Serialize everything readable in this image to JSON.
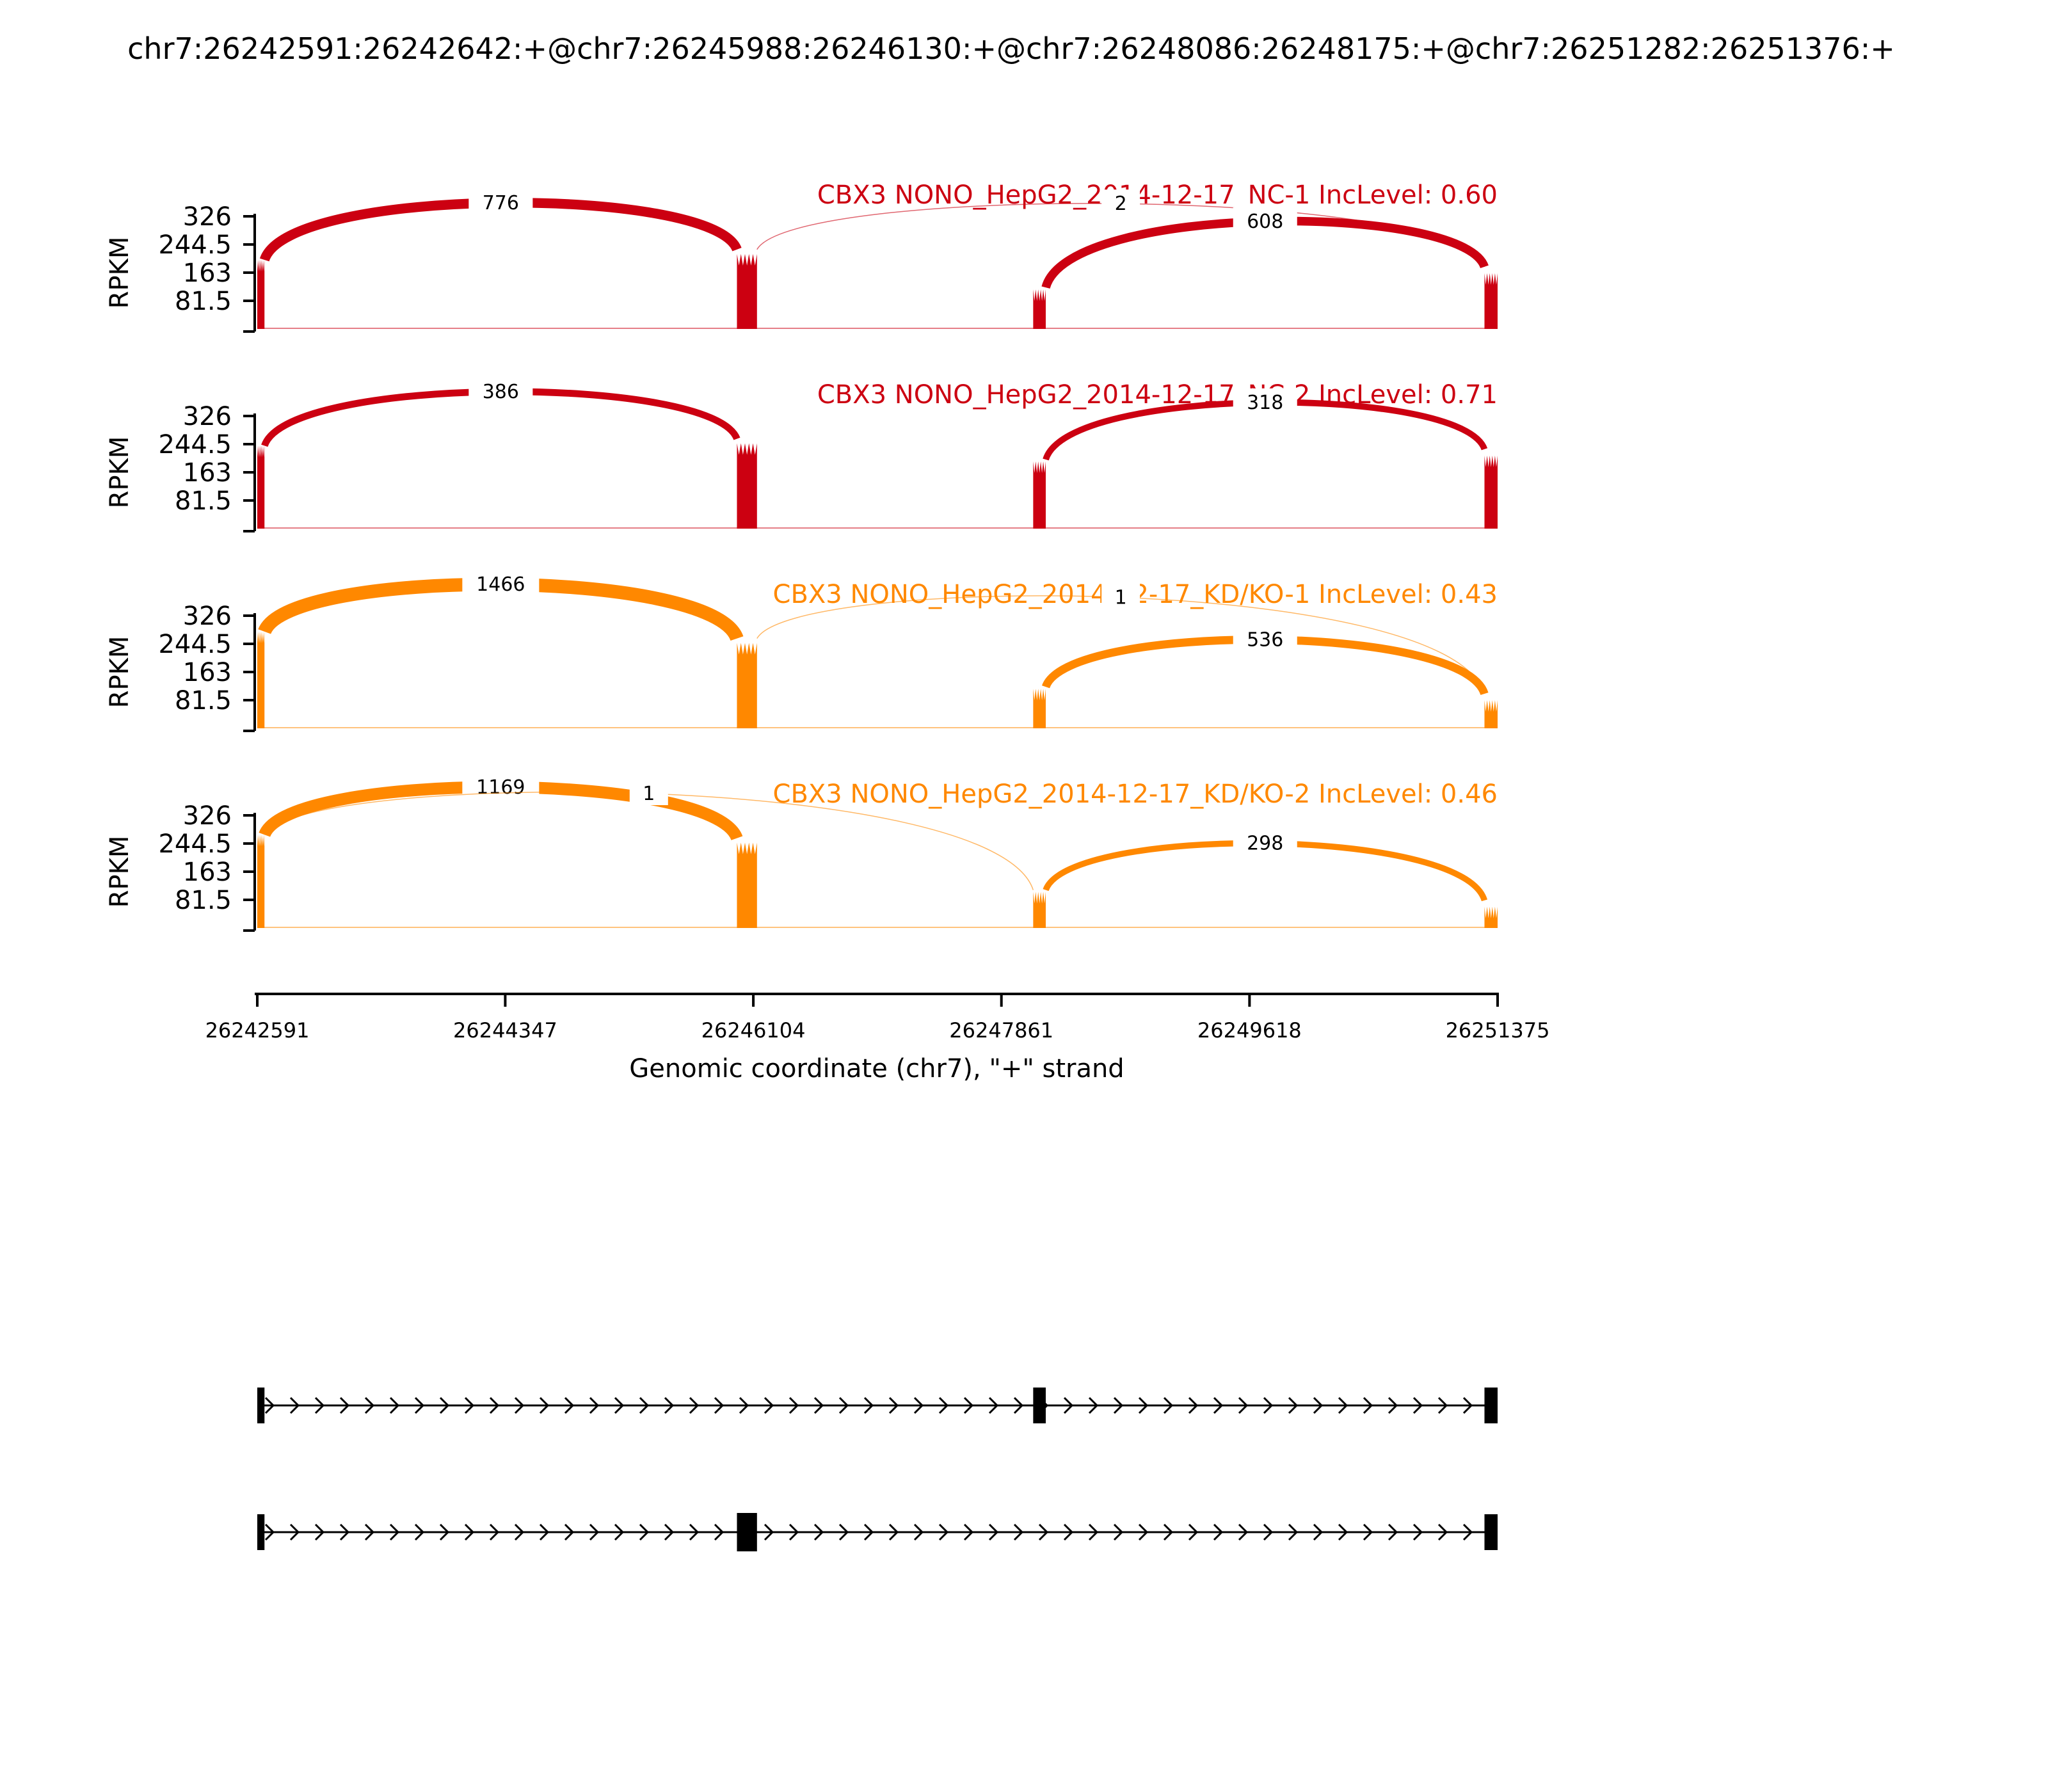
{
  "chart_data": {
    "type": "sashimi",
    "title": "chr7:26242591:26242642:+@chr7:26245988:26246130:+@chr7:26248086:26248175:+@chr7:26251282:26251376:+",
    "xlabel": "Genomic coordinate (chr7), \"+\" strand",
    "ylabel": "RPKM",
    "xlim": [
      26242591,
      26251375
    ],
    "ylim": [
      0,
      326
    ],
    "yticks": [
      "81.5",
      "163",
      "244.5",
      "326"
    ],
    "xticks": [
      "26242591",
      "26244347",
      "26246104",
      "26247861",
      "26249618",
      "26251375"
    ],
    "exons": [
      {
        "start": 26242591,
        "end": 26242642
      },
      {
        "start": 26245988,
        "end": 26246130
      },
      {
        "start": 26248086,
        "end": 26248175
      },
      {
        "start": 26251282,
        "end": 26251375
      }
    ],
    "tracks": [
      {
        "label": "CBX3 NONO_HepG2_2014-12-17_NC-1 IncLevel: 0.60",
        "color": "#cc0011",
        "coverage": [
          200,
          230,
          120,
          180
        ],
        "junctions": [
          {
            "from": 26242642,
            "to": 26245988,
            "count": "776",
            "side": "above"
          },
          {
            "from": 26246130,
            "to": 26251282,
            "count": "2",
            "side": "above"
          },
          {
            "from": 26248175,
            "to": 26251282,
            "count": "608",
            "side": "above"
          }
        ]
      },
      {
        "label": "CBX3 NONO_HepG2_2014-12-17_NC-2 IncLevel: 0.71",
        "color": "#cc0011",
        "coverage": [
          240,
          260,
          200,
          230
        ],
        "junctions": [
          {
            "from": 26242642,
            "to": 26245988,
            "count": "386",
            "side": "above"
          },
          {
            "from": 26248175,
            "to": 26251282,
            "count": "318",
            "side": "above"
          }
        ]
      },
      {
        "label": "CBX3 NONO_HepG2_2014-12-17_KD/KO-1 IncLevel: 0.43",
        "color": "#ff8800",
        "coverage": [
          280,
          260,
          120,
          100
        ],
        "junctions": [
          {
            "from": 26242642,
            "to": 26245988,
            "count": "1466",
            "side": "above"
          },
          {
            "from": 26246130,
            "to": 26251282,
            "count": "1",
            "side": "above"
          },
          {
            "from": 26248175,
            "to": 26251282,
            "count": "536",
            "side": "above"
          }
        ]
      },
      {
        "label": "CBX3 NONO_HepG2_2014-12-17_KD/KO-2 IncLevel: 0.46",
        "color": "#ff8800",
        "coverage": [
          270,
          260,
          110,
          80
        ],
        "junctions": [
          {
            "from": 26242642,
            "to": 26245988,
            "count": "1169",
            "side": "above"
          },
          {
            "from": 26242642,
            "to": 26248086,
            "count": "1",
            "side": "above"
          },
          {
            "from": 26248175,
            "to": 26251282,
            "count": "298",
            "side": "above"
          }
        ]
      }
    ],
    "isoforms": [
      {
        "exons": [
          [
            26242591,
            26242642
          ],
          [
            26248086,
            26248175
          ],
          [
            26251282,
            26251375
          ]
        ]
      },
      {
        "exons": [
          [
            26242591,
            26242642
          ],
          [
            26245988,
            26246130
          ],
          [
            26251282,
            26251375
          ]
        ]
      }
    ]
  }
}
